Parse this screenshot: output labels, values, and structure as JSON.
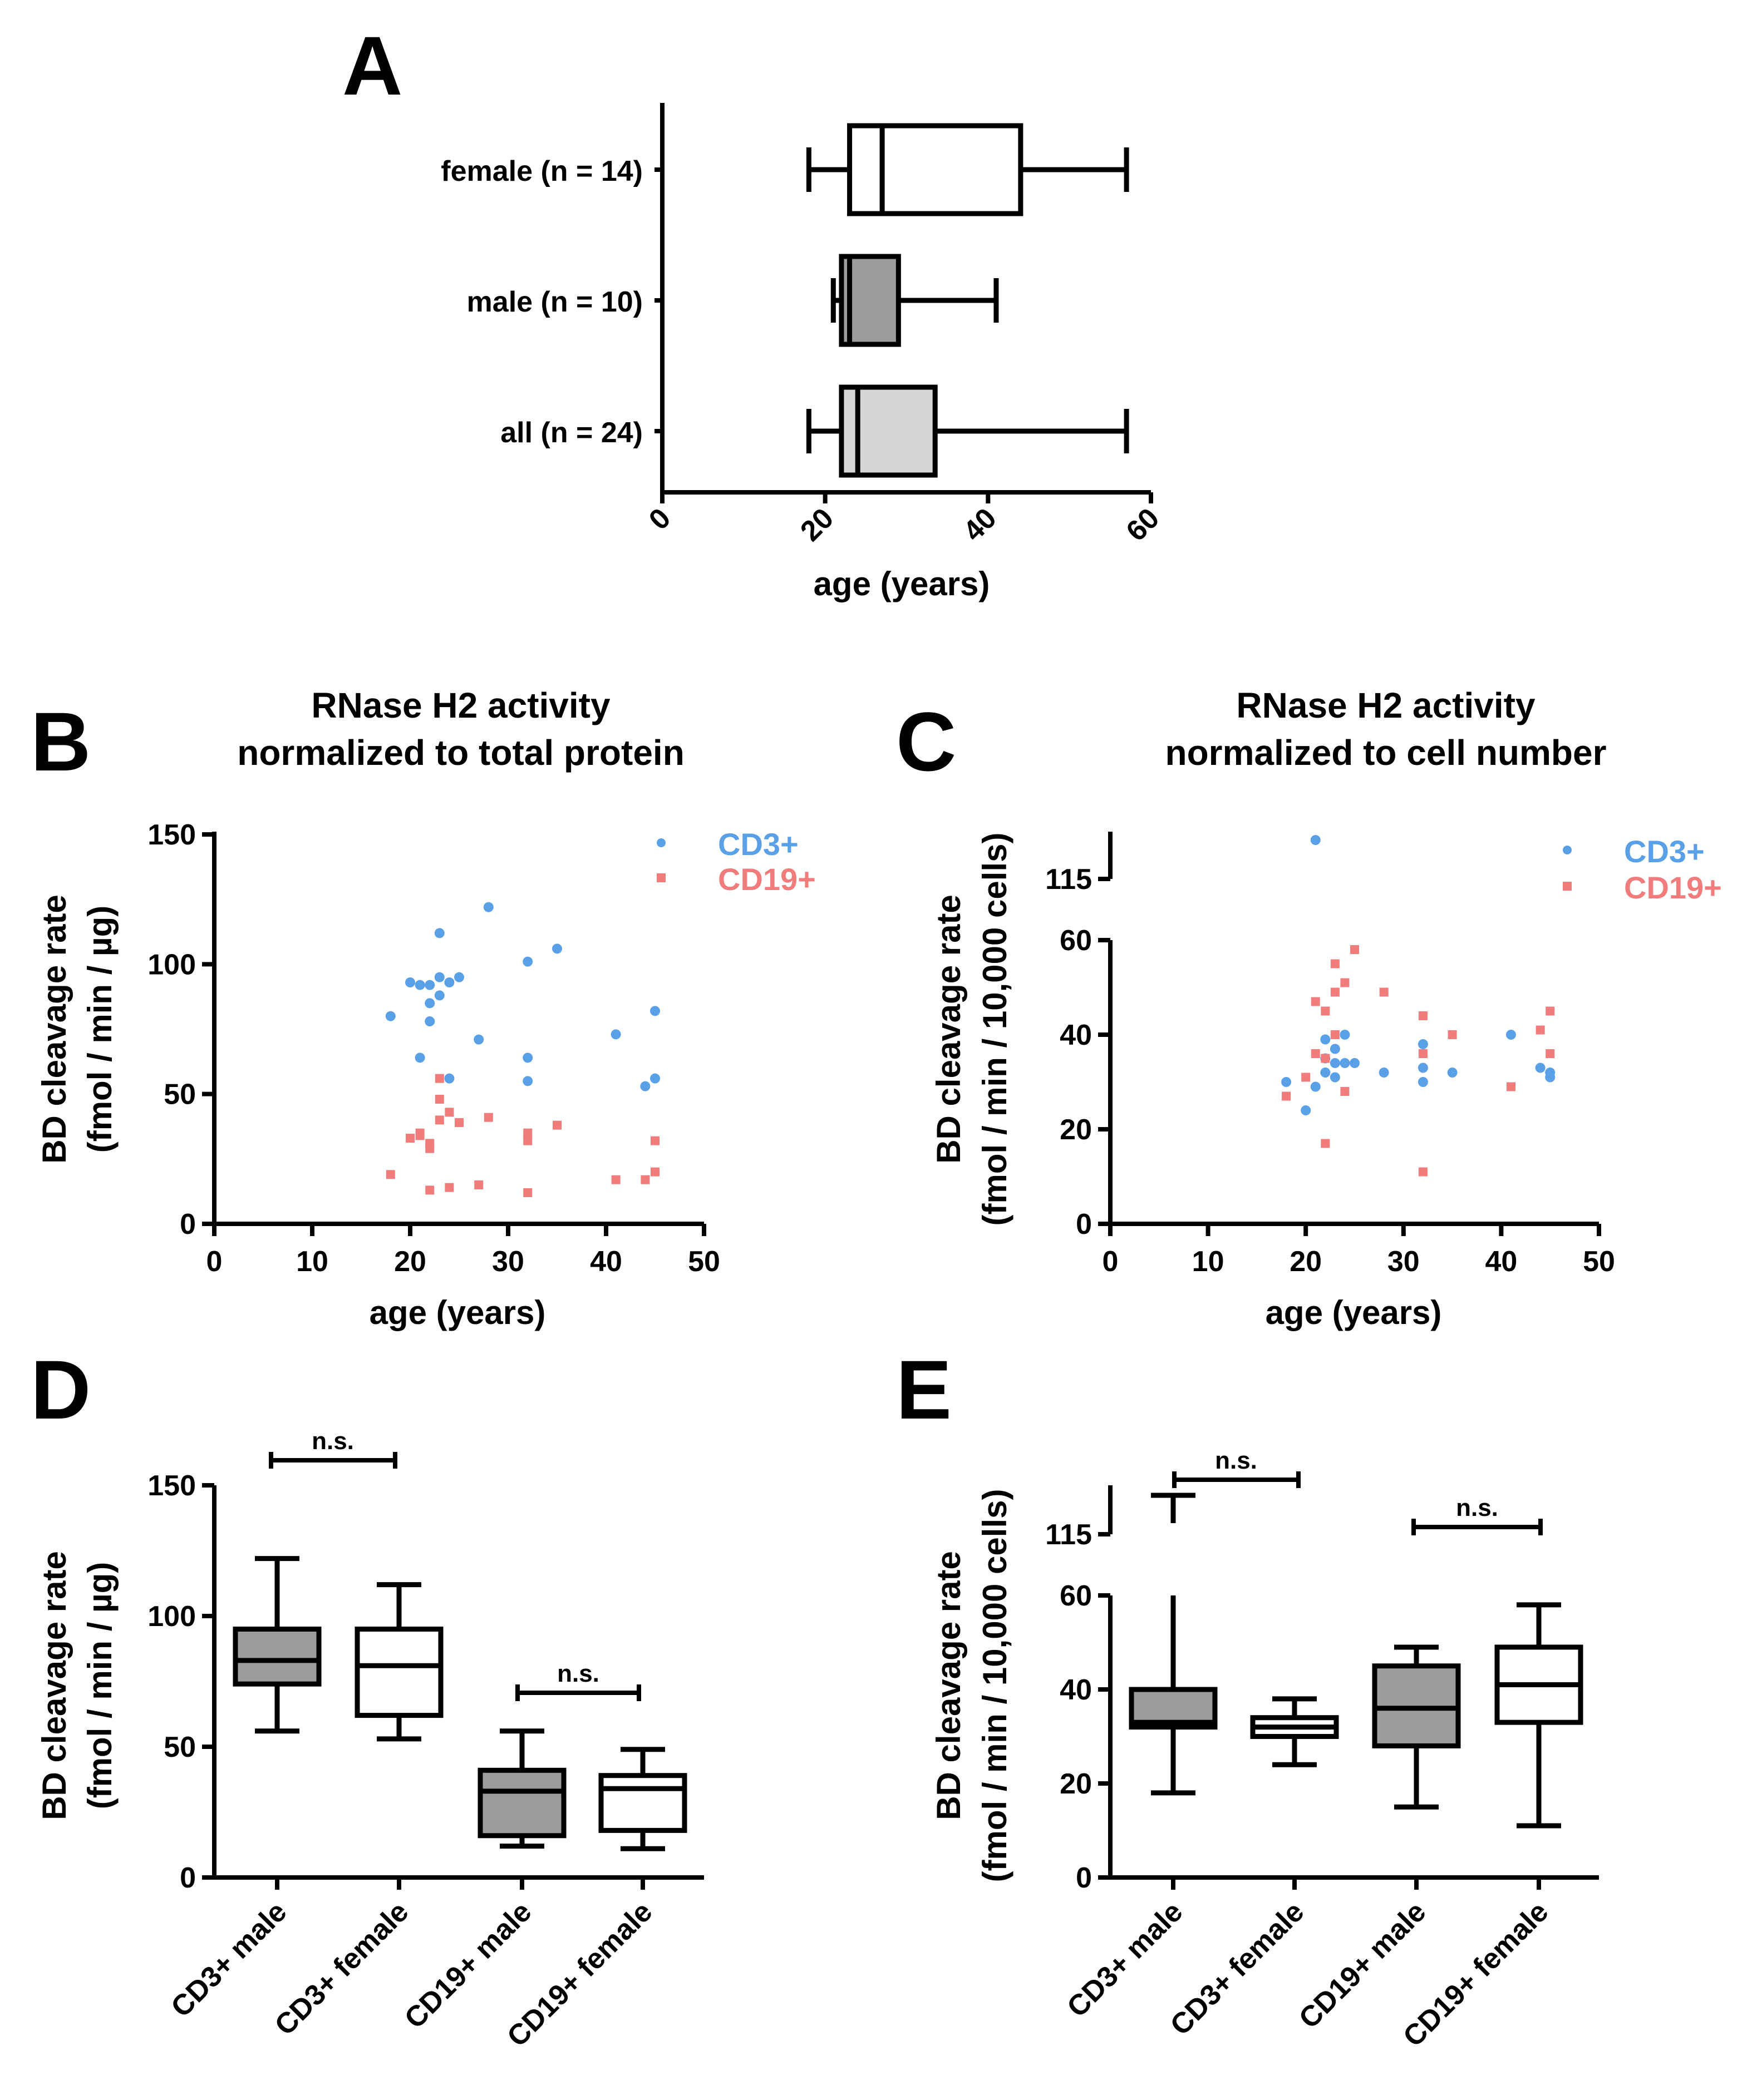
{
  "panels": {
    "A": {
      "label": "A",
      "xlabel": "age (years)",
      "xticks": [
        "0",
        "20",
        "40",
        "60"
      ],
      "xlim": [
        0,
        60
      ]
    },
    "B": {
      "label": "B",
      "title_line1": "RNase H2 activity",
      "title_line2": "normalized to total protein",
      "ylabel_line1": "BD cleavage rate",
      "ylabel_line2": "(fmol / min / µg)",
      "xlabel": "age (years)",
      "yticks": [
        "0",
        "50",
        "100",
        "150"
      ],
      "xticks": [
        "0",
        "10",
        "20",
        "30",
        "40",
        "50"
      ],
      "legend_cd3": "CD3+",
      "legend_cd19": "CD19+"
    },
    "C": {
      "label": "C",
      "title_line1": "RNase H2 activity",
      "title_line2": "normalized to cell number",
      "ylabel_line1": "BD cleavage rate",
      "ylabel_line2": "(fmol / min / 10,000 cells)",
      "xlabel": "age (years)",
      "yticks": [
        "0",
        "20",
        "40",
        "60",
        "115"
      ],
      "xticks": [
        "0",
        "10",
        "20",
        "30",
        "40",
        "50"
      ],
      "legend_cd3": "CD3+",
      "legend_cd19": "CD19+"
    },
    "D": {
      "label": "D",
      "ylabel_line1": "BD cleavage rate",
      "ylabel_line2": "(fmol / min / µg)",
      "yticks": [
        "0",
        "50",
        "100",
        "150"
      ],
      "sig_1": "n.s.",
      "sig_2": "n.s."
    },
    "E": {
      "label": "E",
      "ylabel_line1": "BD cleavage rate",
      "ylabel_line2": "(fmol / min / 10,000 cells)",
      "yticks": [
        "0",
        "20",
        "40",
        "60",
        "115"
      ],
      "sig_1": "n.s.",
      "sig_2": "n.s."
    }
  },
  "colors": {
    "cd3": "#5aa0e6",
    "cd19": "#f07c7c",
    "male_fill": "#9c9c9c",
    "all_fill": "#d6d6d6",
    "female_fill": "#ffffff"
  },
  "chart_data": [
    {
      "id": "A",
      "type": "box",
      "orientation": "horizontal",
      "xlabel": "age (years)",
      "xlim": [
        0,
        60
      ],
      "boxes": [
        {
          "name": "female (n = 14)",
          "min": 18,
          "q1": 23,
          "median": 27,
          "q3": 44,
          "max": 57,
          "fill": "female"
        },
        {
          "name": "male (n = 10)",
          "min": 21,
          "q1": 22,
          "median": 23,
          "q3": 29,
          "max": 41,
          "fill": "male"
        },
        {
          "name": "all (n = 24)",
          "min": 18,
          "q1": 22,
          "median": 24,
          "q3": 33.5,
          "max": 57,
          "fill": "all"
        }
      ]
    },
    {
      "id": "B",
      "type": "scatter",
      "title": "RNase H2 activity normalized to total protein",
      "xlabel": "age (years)",
      "ylabel": "BD cleavage rate (fmol / min / µg)",
      "xlim": [
        0,
        50
      ],
      "ylim": [
        0,
        150
      ],
      "series": [
        {
          "name": "CD3+",
          "points": [
            [
              18,
              80
            ],
            [
              20,
              93
            ],
            [
              21,
              92
            ],
            [
              21,
              64
            ],
            [
              22,
              85
            ],
            [
              22,
              78
            ],
            [
              22,
              92
            ],
            [
              23,
              112
            ],
            [
              23,
              95
            ],
            [
              23,
              88
            ],
            [
              24,
              93
            ],
            [
              24,
              56
            ],
            [
              25,
              95
            ],
            [
              27,
              71
            ],
            [
              28,
              122
            ],
            [
              32,
              101
            ],
            [
              32,
              64
            ],
            [
              32,
              55
            ],
            [
              35,
              106
            ],
            [
              41,
              73
            ],
            [
              44,
              53
            ],
            [
              45,
              56
            ],
            [
              45,
              82
            ]
          ]
        },
        {
          "name": "CD19+",
          "points": [
            [
              18,
              19
            ],
            [
              20,
              33
            ],
            [
              21,
              34
            ],
            [
              21,
              35
            ],
            [
              22,
              31
            ],
            [
              22,
              29
            ],
            [
              22,
              13
            ],
            [
              23,
              56
            ],
            [
              23,
              48
            ],
            [
              23,
              40
            ],
            [
              24,
              43
            ],
            [
              24,
              14
            ],
            [
              25,
              39
            ],
            [
              27,
              15
            ],
            [
              28,
              41
            ],
            [
              32,
              35
            ],
            [
              32,
              32
            ],
            [
              32,
              12
            ],
            [
              35,
              38
            ],
            [
              41,
              17
            ],
            [
              44,
              17
            ],
            [
              45,
              20
            ],
            [
              45,
              32
            ]
          ]
        }
      ]
    },
    {
      "id": "C",
      "type": "scatter",
      "title": "RNase H2 activity normalized to cell number",
      "xlabel": "age (years)",
      "ylabel": "BD cleavage rate (fmol / min / 10,000 cells)",
      "xlim": [
        0,
        50
      ],
      "ylim": [
        0,
        115
      ],
      "y_axis_break": [
        60,
        115
      ],
      "series": [
        {
          "name": "CD3+",
          "points": [
            [
              18,
              30
            ],
            [
              20,
              24
            ],
            [
              21,
              29
            ],
            [
              21,
              122
            ],
            [
              22,
              32
            ],
            [
              22,
              35
            ],
            [
              22,
              39
            ],
            [
              23,
              37
            ],
            [
              23,
              34
            ],
            [
              23,
              31
            ],
            [
              24,
              40
            ],
            [
              24,
              34
            ],
            [
              25,
              34
            ],
            [
              28,
              32
            ],
            [
              32,
              38
            ],
            [
              32,
              33
            ],
            [
              32,
              30
            ],
            [
              35,
              32
            ],
            [
              41,
              40
            ],
            [
              44,
              33
            ],
            [
              45,
              32
            ],
            [
              45,
              31
            ]
          ]
        },
        {
          "name": "CD19+",
          "points": [
            [
              18,
              27
            ],
            [
              20,
              31
            ],
            [
              21,
              47
            ],
            [
              21,
              36
            ],
            [
              22,
              45
            ],
            [
              22,
              35
            ],
            [
              22,
              17
            ],
            [
              23,
              55
            ],
            [
              23,
              49
            ],
            [
              23,
              40
            ],
            [
              24,
              51
            ],
            [
              24,
              28
            ],
            [
              25,
              58
            ],
            [
              28,
              49
            ],
            [
              32,
              44
            ],
            [
              32,
              36
            ],
            [
              32,
              11
            ],
            [
              35,
              40
            ],
            [
              41,
              29
            ],
            [
              44,
              41
            ],
            [
              45,
              45
            ],
            [
              45,
              36
            ]
          ]
        }
      ]
    },
    {
      "id": "D",
      "type": "box",
      "orientation": "vertical",
      "ylabel": "BD cleavage rate (fmol / min / µg)",
      "ylim": [
        0,
        150
      ],
      "categories": [
        "CD3+ male",
        "CD3+ female",
        "CD19+ male",
        "CD19+ female"
      ],
      "boxes": [
        {
          "name": "CD3+ male",
          "min": 56,
          "q1": 74,
          "median": 83,
          "q3": 95,
          "max": 122,
          "fill": "male"
        },
        {
          "name": "CD3+ female",
          "min": 53,
          "q1": 62,
          "median": 81,
          "q3": 95,
          "max": 112,
          "fill": "female"
        },
        {
          "name": "CD19+ male",
          "min": 12,
          "q1": 16,
          "median": 33,
          "q3": 41,
          "max": 56,
          "fill": "male"
        },
        {
          "name": "CD19+ female",
          "min": 11,
          "q1": 18,
          "median": 34,
          "q3": 39,
          "max": 49,
          "fill": "female"
        }
      ],
      "comparisons": [
        {
          "between": [
            "CD3+ male",
            "CD3+ female"
          ],
          "label": "n.s."
        },
        {
          "between": [
            "CD19+ male",
            "CD19+ female"
          ],
          "label": "n.s."
        }
      ]
    },
    {
      "id": "E",
      "type": "box",
      "orientation": "vertical",
      "ylabel": "BD cleavage rate (fmol / min / 10,000 cells)",
      "ylim": [
        0,
        115
      ],
      "y_axis_break": [
        60,
        115
      ],
      "categories": [
        "CD3+ male",
        "CD3+ female",
        "CD19+ male",
        "CD19+ female"
      ],
      "boxes": [
        {
          "name": "CD3+ male",
          "min": 18,
          "q1": 32,
          "median": 33,
          "q3": 40,
          "max": 122,
          "extra_whisker": 60,
          "fill": "male"
        },
        {
          "name": "CD3+ female",
          "min": 24,
          "q1": 30,
          "median": 32,
          "q3": 34,
          "max": 38,
          "fill": "female"
        },
        {
          "name": "CD19+ male",
          "min": 15,
          "q1": 28,
          "median": 36,
          "q3": 45,
          "max": 49,
          "fill": "male"
        },
        {
          "name": "CD19+ female",
          "min": 11,
          "q1": 33,
          "median": 41,
          "q3": 49,
          "max": 58,
          "fill": "female"
        }
      ],
      "comparisons": [
        {
          "between": [
            "CD3+ male",
            "CD3+ female"
          ],
          "label": "n.s."
        },
        {
          "between": [
            "CD19+ male",
            "CD19+ female"
          ],
          "label": "n.s."
        }
      ]
    }
  ]
}
